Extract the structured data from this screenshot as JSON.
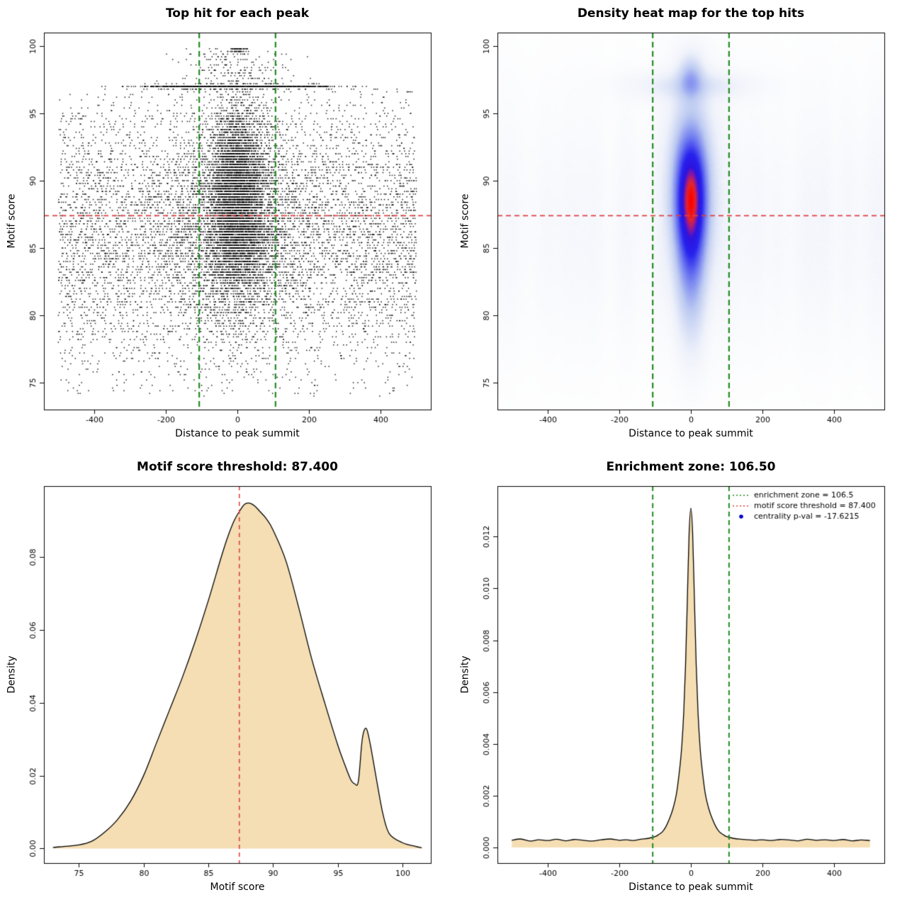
{
  "chart_data": [
    {
      "type": "scatter",
      "title": "Top hit for each peak",
      "xlabel": "Distance to peak summit",
      "ylabel": "Motif score",
      "xlim": [
        -540,
        540
      ],
      "ylim": [
        73,
        101
      ],
      "xticks": {
        "values": [
          -400,
          -200,
          0,
          200,
          400
        ],
        "labels": [
          "-400",
          "-200",
          "0",
          "200",
          "400"
        ]
      },
      "yticks": {
        "values": [
          75,
          80,
          85,
          90,
          95,
          100
        ],
        "labels": [
          "75",
          "80",
          "85",
          "90",
          "95",
          "100"
        ]
      },
      "hline": {
        "y": 87.4,
        "color": "#e04040",
        "width": 1.6,
        "dash": [
          7,
          5
        ]
      },
      "vlines": {
        "xs": [
          -106.5,
          106.5
        ],
        "color": "#228B22",
        "width": 2.2,
        "dash": [
          8,
          5
        ]
      },
      "point": {
        "color": "#000000",
        "size": 1.5,
        "alpha": 0.9,
        "y_quantum": 0.2
      },
      "seed": 1234,
      "clusters": [
        {
          "n": 6500,
          "x": [
            "uniform",
            -500,
            500
          ],
          "y": [
            "normal",
            86,
            5.2,
            74,
            97.1
          ]
        },
        {
          "n": 5200,
          "x": [
            "normal",
            0,
            38,
            -500,
            500
          ],
          "y": [
            "normal",
            88.6,
            3.4,
            75,
            97.1
          ]
        },
        {
          "n": 2600,
          "x": [
            "normal",
            0,
            95,
            -500,
            500
          ],
          "y": [
            "normal",
            87,
            4.3,
            74.2,
            96.9
          ]
        },
        {
          "n": 650,
          "x": [
            "normal",
            0,
            120,
            -500,
            500
          ],
          "y": [
            "normal",
            97.0,
            0.07,
            96.8,
            97.2
          ]
        },
        {
          "n": 280,
          "x": [
            "uniform",
            -260,
            260
          ],
          "y": [
            "normal",
            96.97,
            0.05,
            96.8,
            97.15
          ]
        },
        {
          "n": 190,
          "x": [
            "normal",
            0,
            70,
            -400,
            400
          ],
          "y": [
            "uniform",
            97.2,
            99.8
          ]
        },
        {
          "n": 60,
          "x": [
            "normal",
            3,
            13,
            -60,
            70
          ],
          "y": [
            "normal",
            99.72,
            0.04,
            99.6,
            99.85
          ]
        }
      ]
    },
    {
      "type": "heatmap",
      "title": "Density heat map for the top hits",
      "xlabel": "Distance to peak summit",
      "ylabel": "Motif score",
      "xlim": [
        -540,
        540
      ],
      "ylim": [
        73,
        101
      ],
      "xticks": {
        "values": [
          -400,
          -200,
          0,
          200,
          400
        ],
        "labels": [
          "-400",
          "-200",
          "0",
          "200",
          "400"
        ]
      },
      "yticks": {
        "values": [
          75,
          80,
          85,
          90,
          95,
          100
        ],
        "labels": [
          "75",
          "80",
          "85",
          "90",
          "95",
          "100"
        ]
      },
      "hline": {
        "y": 87.4,
        "color": "#e04040",
        "width": 1.6,
        "dash": [
          7,
          5
        ]
      },
      "vlines": {
        "xs": [
          -106.5,
          106.5
        ],
        "color": "#228B22",
        "width": 2.2,
        "dash": [
          8,
          5
        ]
      },
      "seed": 77,
      "gamma": 0.85,
      "components": [
        {
          "amp": 1.0,
          "mx": 0,
          "sx": 30,
          "my": 89.0,
          "sy": 3.0
        },
        {
          "amp": 0.5,
          "mx": 0,
          "sx": 27,
          "my": 85.0,
          "sy": 4.3
        },
        {
          "amp": 0.26,
          "mx": 0,
          "sx": 46,
          "my": 90.0,
          "sy": 5.2
        },
        {
          "amp": 0.15,
          "mx": 0,
          "sx": 115,
          "my": 97.1,
          "sy": 0.7
        },
        {
          "amp": 0.32,
          "mx": 0,
          "sx": 22,
          "my": 97.7,
          "sy": 1.05
        }
      ],
      "background": {
        "base": 0.028,
        "noise_amp": 0.05,
        "bands": [
          {
            "amp": 0.55,
            "my": 85,
            "sy": 5.5
          },
          {
            "amp": 0.45,
            "my": 89.5,
            "sy": 6.5
          }
        ]
      },
      "colormap": [
        [
          0.0,
          [
            255,
            255,
            255
          ]
        ],
        [
          0.1,
          [
            240,
            243,
            251
          ]
        ],
        [
          0.28,
          [
            188,
            202,
            242
          ]
        ],
        [
          0.48,
          [
            110,
            122,
            240
          ]
        ],
        [
          0.66,
          [
            40,
            35,
            238
          ]
        ],
        [
          0.8,
          [
            45,
            20,
            225
          ]
        ],
        [
          0.88,
          [
            150,
            25,
            150
          ]
        ],
        [
          0.94,
          [
            230,
            40,
            40
          ]
        ],
        [
          1.0,
          [
            255,
            0,
            0
          ]
        ]
      ]
    },
    {
      "type": "density",
      "title": "Motif score threshold: 87.400",
      "xlabel": "Motif score",
      "ylabel": "Density",
      "xlim": [
        72.3,
        102.2
      ],
      "ylim": [
        -0.004,
        0.0995
      ],
      "xticks": {
        "values": [
          75,
          80,
          85,
          90,
          95,
          100
        ],
        "labels": [
          "75",
          "80",
          "85",
          "90",
          "95",
          "100"
        ]
      },
      "yticks": {
        "values": [
          0,
          0.02,
          0.04,
          0.06,
          0.08
        ],
        "labels": [
          "0.00",
          "0.02",
          "0.04",
          "0.06",
          "0.08"
        ]
      },
      "fill": "#F5DEB3",
      "stroke": "#000000",
      "vlines": {
        "xs": [
          87.4
        ],
        "color": "#e04040",
        "width": 1.6,
        "dash": [
          6,
          5
        ]
      },
      "curve": {
        "x": [
          73,
          75,
          76,
          77,
          78,
          79,
          80,
          81,
          82,
          83,
          84,
          85,
          86,
          86.5,
          87,
          87.4,
          87.8,
          88.2,
          88.6,
          89,
          89.5,
          90,
          91,
          92,
          93,
          94,
          95,
          95.5,
          96,
          96.3,
          96.6,
          96.9,
          97.2,
          97.5,
          98,
          98.5,
          99,
          100,
          101,
          101.5
        ],
        "y": [
          0.0003,
          0.001,
          0.002,
          0.0045,
          0.008,
          0.013,
          0.02,
          0.029,
          0.038,
          0.047,
          0.057,
          0.068,
          0.08,
          0.0855,
          0.09,
          0.0925,
          0.0945,
          0.0948,
          0.094,
          0.0925,
          0.0905,
          0.0875,
          0.079,
          0.066,
          0.052,
          0.04,
          0.0285,
          0.0235,
          0.019,
          0.0178,
          0.0185,
          0.03,
          0.033,
          0.029,
          0.019,
          0.0095,
          0.004,
          0.0016,
          0.0006,
          0.0002
        ]
      }
    },
    {
      "type": "density",
      "title": "Enrichment zone: 106.50",
      "xlabel": "Distance to peak summit",
      "ylabel": "Density",
      "xlim": [
        -540,
        540
      ],
      "ylim": [
        -0.0006,
        0.01395
      ],
      "xticks": {
        "values": [
          -400,
          -200,
          0,
          200,
          400
        ],
        "labels": [
          "-400",
          "-200",
          "0",
          "200",
          "400"
        ]
      },
      "yticks": {
        "values": [
          0,
          0.002,
          0.004,
          0.006,
          0.008,
          0.01,
          0.012
        ],
        "labels": [
          "0.000",
          "0.002",
          "0.004",
          "0.006",
          "0.008",
          "0.010",
          "0.012"
        ]
      },
      "fill": "#F5DEB3",
      "stroke": "#000000",
      "vlines": {
        "xs": [
          -106.5,
          106.5
        ],
        "color": "#228B22",
        "width": 2,
        "dash": [
          7,
          5
        ]
      },
      "curve": {
        "x": [
          -500,
          -475,
          -450,
          -425,
          -400,
          -375,
          -350,
          -325,
          -300,
          -275,
          -250,
          -225,
          -200,
          -180,
          -160,
          -140,
          -120,
          -100,
          -90,
          -80,
          -70,
          -60,
          -50,
          -40,
          -30,
          -25,
          -20,
          -15,
          -10,
          -5,
          0,
          5,
          10,
          15,
          20,
          25,
          30,
          40,
          50,
          60,
          70,
          80,
          90,
          100,
          120,
          140,
          160,
          180,
          200,
          225,
          250,
          275,
          300,
          325,
          350,
          375,
          400,
          425,
          450,
          475,
          500
        ],
        "y": [
          0.00028,
          0.00033,
          0.00025,
          0.0003,
          0.00027,
          0.00032,
          0.00026,
          0.00031,
          0.00028,
          0.00025,
          0.0003,
          0.00033,
          0.00028,
          0.0003,
          0.00027,
          0.00032,
          0.00035,
          0.00042,
          0.0005,
          0.0006,
          0.0008,
          0.0011,
          0.0015,
          0.0021,
          0.0032,
          0.004,
          0.0052,
          0.007,
          0.0095,
          0.0121,
          0.0131,
          0.0121,
          0.0095,
          0.007,
          0.0052,
          0.004,
          0.0032,
          0.0021,
          0.0015,
          0.0011,
          0.0008,
          0.0006,
          0.0005,
          0.00042,
          0.00035,
          0.00032,
          0.0003,
          0.00028,
          0.0003,
          0.00027,
          0.00031,
          0.00029,
          0.00026,
          0.00032,
          0.00028,
          0.0003,
          0.00027,
          0.00031,
          0.00026,
          0.00029,
          0.00027
        ]
      },
      "legend": {
        "items": [
          {
            "label": "enrichment zone = 106.5",
            "type": "line",
            "color": "#228B22",
            "dash": [
              2,
              3
            ]
          },
          {
            "label": "motif score threshold = 87.400",
            "type": "line",
            "color": "#e04040",
            "dash": [
              2,
              3
            ]
          },
          {
            "label": "centrality p-val = -17.6215",
            "type": "point",
            "color": "#0000CC"
          }
        ]
      }
    }
  ]
}
